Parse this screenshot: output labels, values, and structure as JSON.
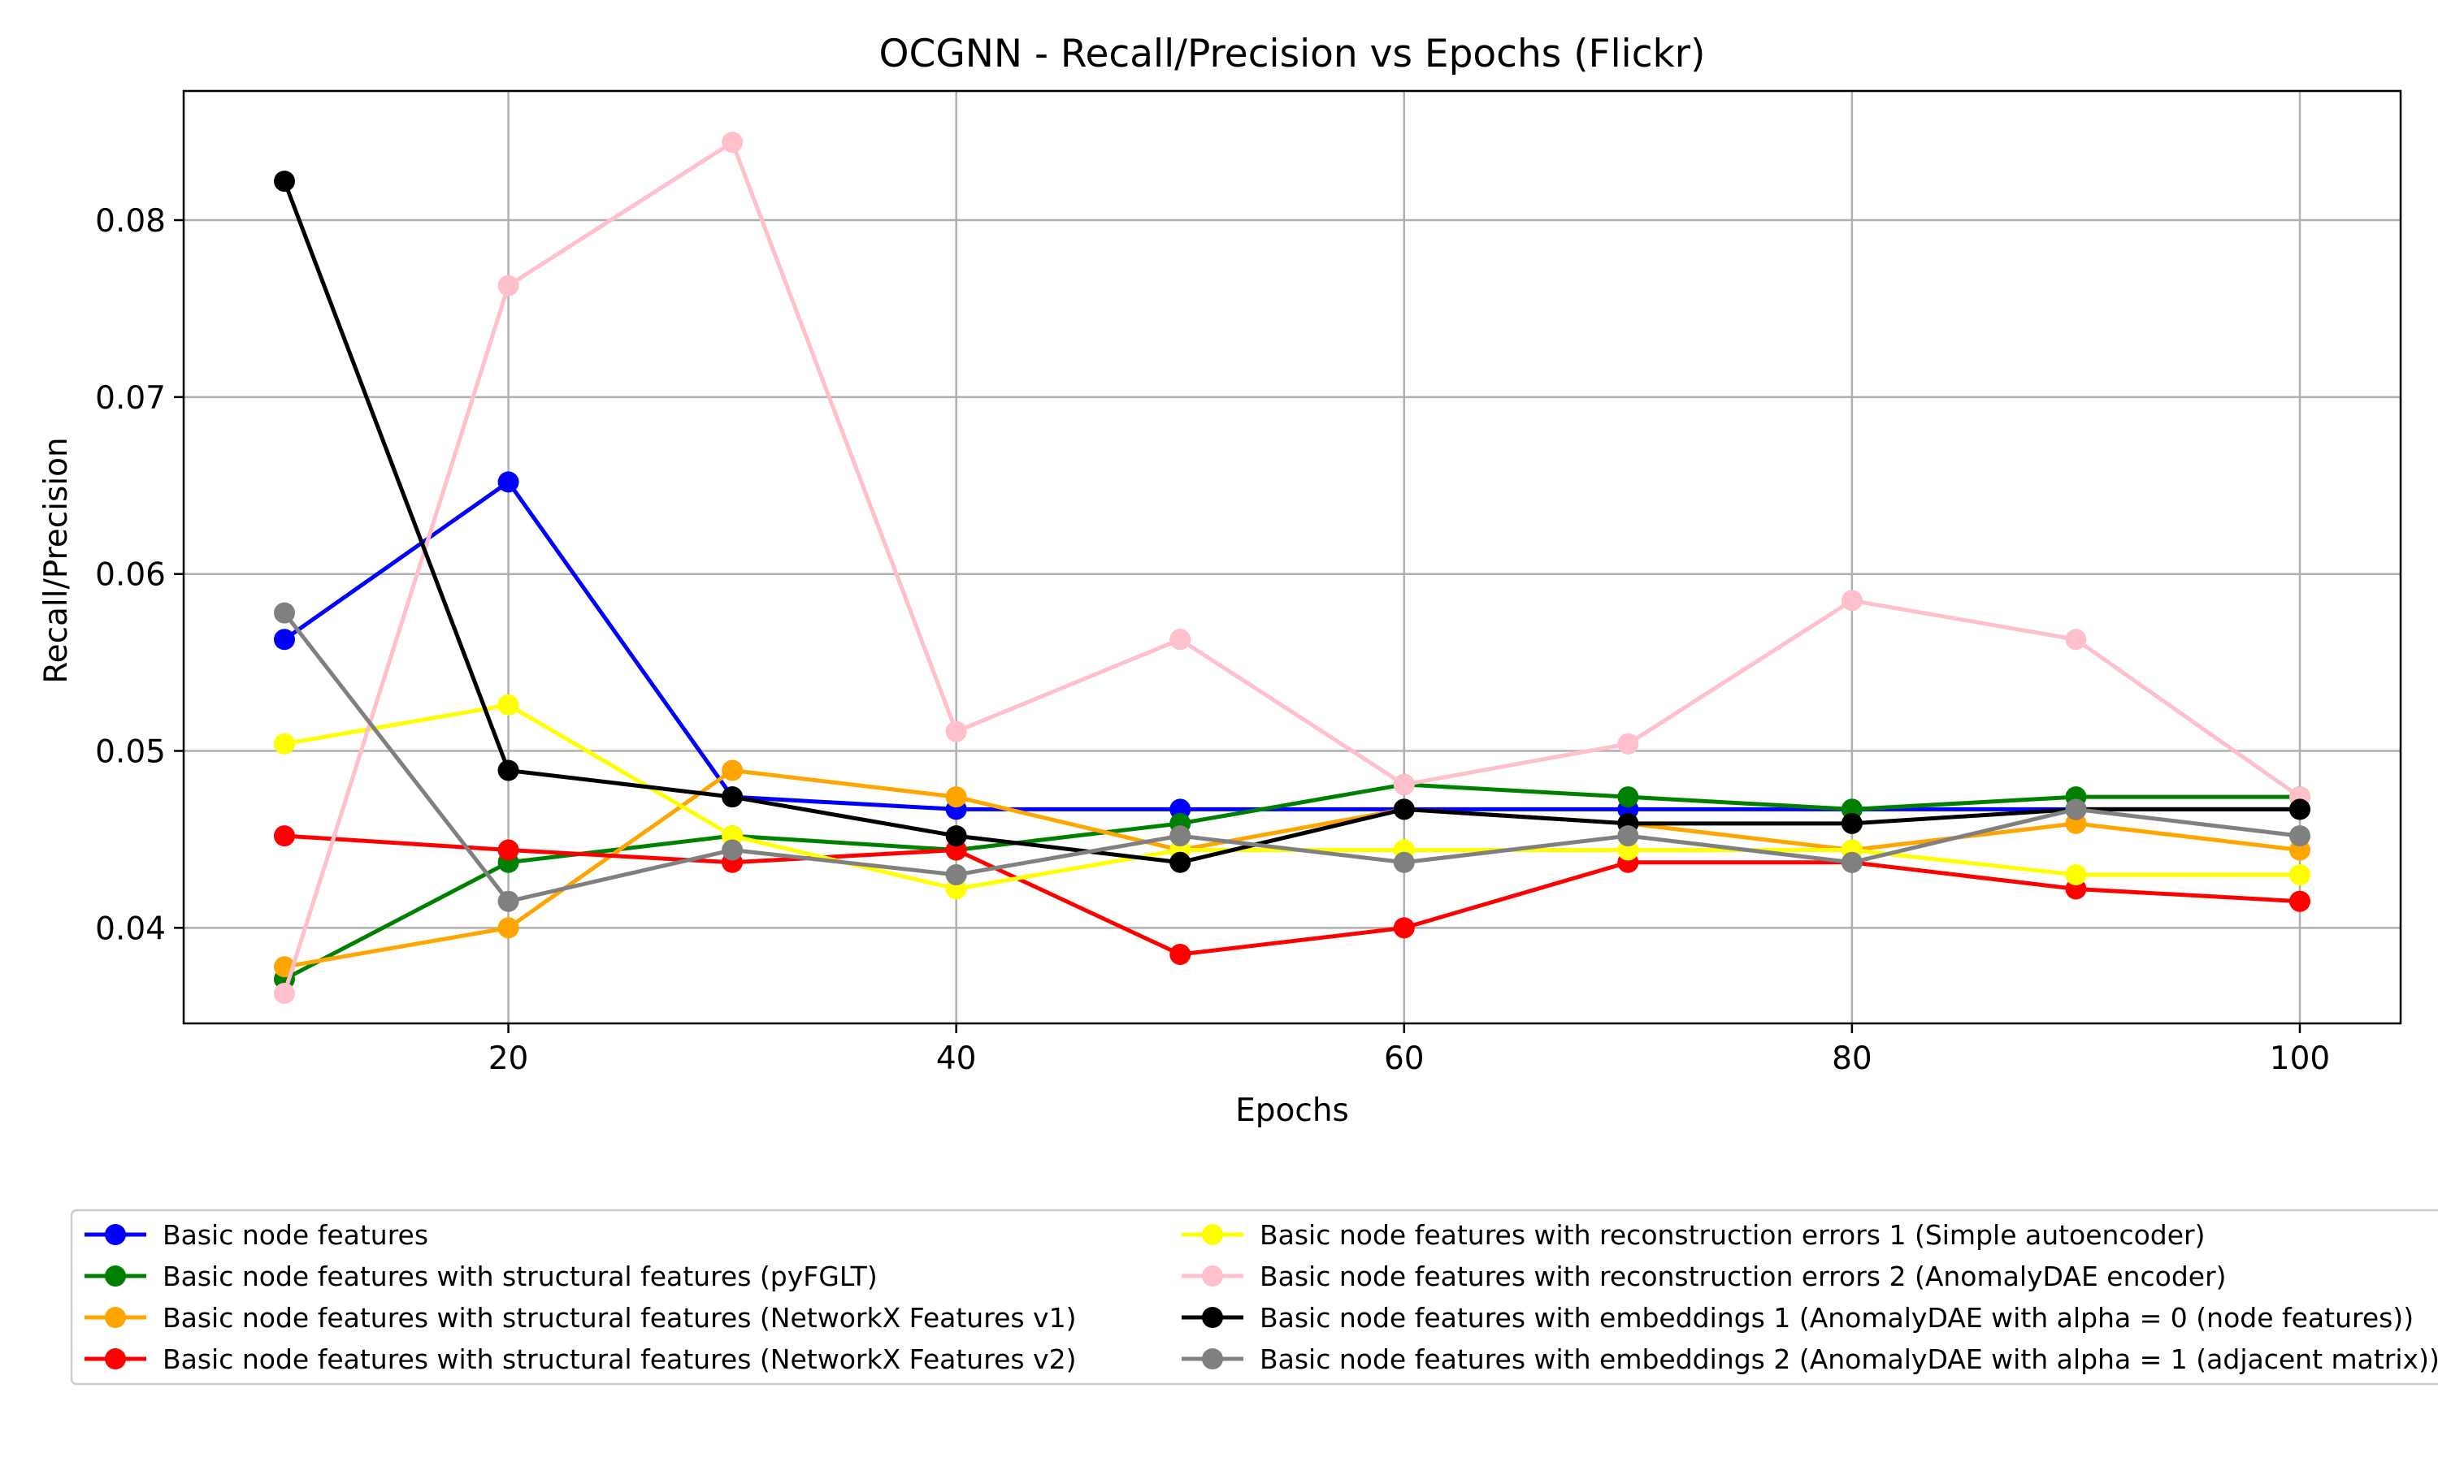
{
  "chart_data": {
    "type": "line",
    "title": "OCGNN - Recall/Precision vs Epochs (Flickr)",
    "xlabel": "Epochs",
    "ylabel": "Recall/Precision",
    "xlim": [
      5.5,
      104.5
    ],
    "ylim": [
      0.0346,
      0.0873
    ],
    "x_ticks": [
      20,
      40,
      60,
      80,
      100
    ],
    "y_ticks": [
      0.04,
      0.05,
      0.06,
      0.07,
      0.08
    ],
    "x_tick_labels": [
      "20",
      "40",
      "60",
      "80",
      "100"
    ],
    "y_tick_labels": [
      "0.04",
      "0.05",
      "0.06",
      "0.07",
      "0.08"
    ],
    "grid": true,
    "legend_position": "bottom",
    "x": [
      10,
      20,
      30,
      40,
      50,
      60,
      70,
      80,
      90,
      100
    ],
    "series": [
      {
        "name": "Basic node features",
        "color": "#0000ff",
        "values": [
          0.0563,
          0.0652,
          0.0474,
          0.0467,
          0.0467,
          0.0467,
          0.0467,
          0.0467,
          0.0467,
          0.0467
        ]
      },
      {
        "name": "Basic node features with structural features (pyFGLT)",
        "color": "#008000",
        "values": [
          0.0371,
          0.0437,
          0.0452,
          0.0444,
          0.0459,
          0.0481,
          0.0474,
          0.0467,
          0.0474,
          0.0474
        ]
      },
      {
        "name": "Basic node features with structural features (NetworkX Features v1)",
        "color": "#ffa500",
        "values": [
          0.0378,
          0.04,
          0.0489,
          0.0474,
          0.0444,
          0.0467,
          0.0459,
          0.0444,
          0.0459,
          0.0444
        ]
      },
      {
        "name": "Basic node features with structural features (NetworkX Features v2)",
        "color": "#ff0000",
        "values": [
          0.0452,
          0.0444,
          0.0437,
          0.0444,
          0.0385,
          0.04,
          0.0437,
          0.0437,
          0.0422,
          0.0415
        ]
      },
      {
        "name": "Basic node features with reconstruction errors 1 (Simple autoencoder)",
        "color": "#ffff00",
        "values": [
          0.0504,
          0.0526,
          0.0452,
          0.0422,
          0.0444,
          0.0444,
          0.0444,
          0.0444,
          0.043,
          0.043
        ]
      },
      {
        "name": "Basic node features with reconstruction errors 2 (AnomalyDAE encoder)",
        "color": "#ffc0cb",
        "values": [
          0.0363,
          0.0763,
          0.0844,
          0.0511,
          0.0563,
          0.0481,
          0.0504,
          0.0585,
          0.0563,
          0.0474
        ]
      },
      {
        "name": "Basic node features with embeddings 1 (AnomalyDAE with alpha = 0 (node features))",
        "color": "#000000",
        "values": [
          0.0822,
          0.0489,
          0.0474,
          0.0452,
          0.0437,
          0.0467,
          0.0459,
          0.0459,
          0.0467,
          0.0467
        ]
      },
      {
        "name": "Basic node features with embeddings 2 (AnomalyDAE with alpha = 1 (adjacent matrix))",
        "color": "#808080",
        "values": [
          0.0578,
          0.0415,
          0.0444,
          0.043,
          0.0452,
          0.0437,
          0.0452,
          0.0437,
          0.0467,
          0.0452
        ]
      }
    ]
  }
}
